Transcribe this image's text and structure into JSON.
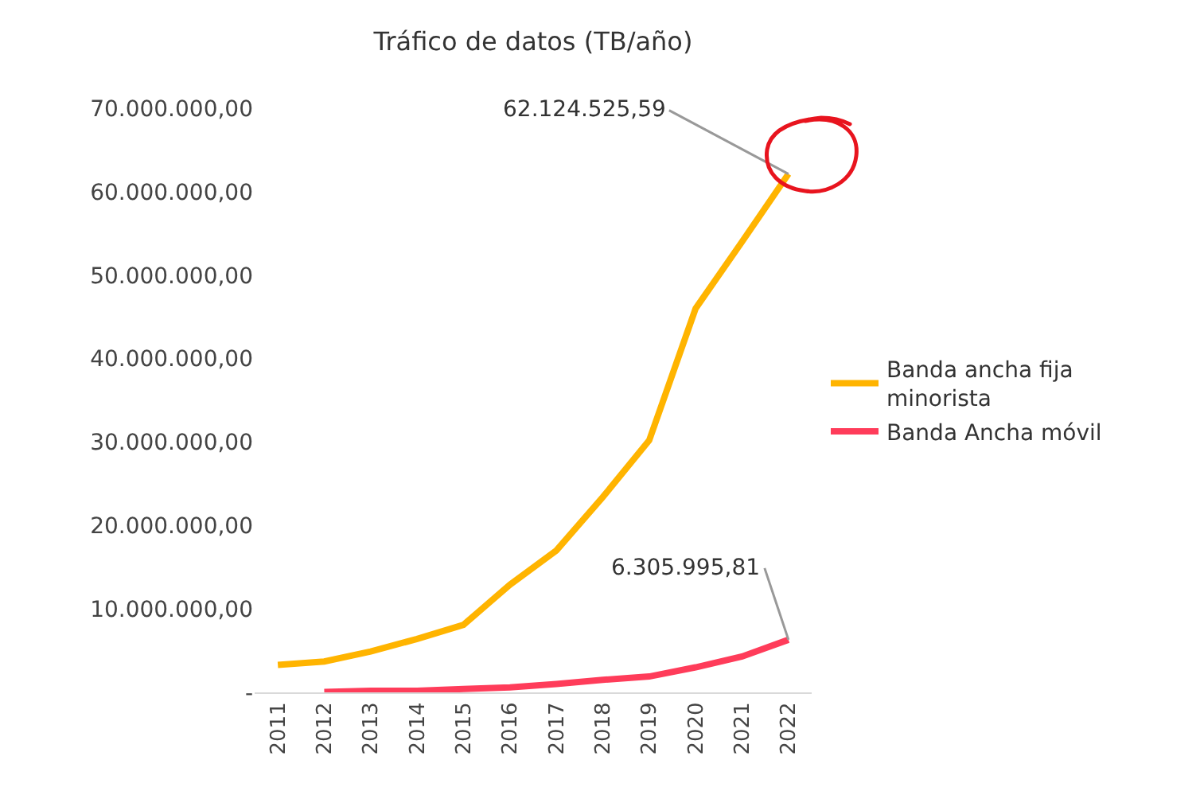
{
  "chart_data": {
    "type": "line",
    "title": "Tráfico de datos (TB/año)",
    "categories": [
      "2011",
      "2012",
      "2013",
      "2014",
      "2015",
      "2016",
      "2017",
      "2018",
      "2019",
      "2020",
      "2021",
      "2022"
    ],
    "series": [
      {
        "name": "Banda ancha fija minorista",
        "color": "#ffb400",
        "values": [
          3300000,
          3700000,
          4900000,
          6400000,
          8100000,
          12900000,
          17000000,
          23400000,
          30200000,
          46000000,
          54000000,
          62124525.59
        ]
      },
      {
        "name": "Banda Ancha móvil",
        "color": "#ff3c5a",
        "values": [
          null,
          50000,
          200000,
          200000,
          400000,
          600000,
          1000000,
          1500000,
          1900000,
          3000000,
          4300000,
          6305995.81
        ]
      }
    ],
    "ylim": [
      0,
      70000000
    ],
    "yticks": [
      {
        "value": 0,
        "label": "-"
      },
      {
        "value": 10000000,
        "label": "10.000.000,00"
      },
      {
        "value": 20000000,
        "label": "20.000.000,00"
      },
      {
        "value": 30000000,
        "label": "30.000.000,00"
      },
      {
        "value": 40000000,
        "label": "40.000.000,00"
      },
      {
        "value": 50000000,
        "label": "50.000.000,00"
      },
      {
        "value": 60000000,
        "label": "60.000.000,00"
      },
      {
        "value": 70000000,
        "label": "70.000.000,00"
      }
    ],
    "annotations": [
      {
        "text": "62.124.525,59",
        "x": "2022",
        "y": 62124525.59
      },
      {
        "text": "6.305.995,81",
        "x": "2022",
        "y": 6305995.81
      }
    ],
    "grid": false,
    "legend": "right",
    "marker": "none",
    "line_style": "solid"
  }
}
